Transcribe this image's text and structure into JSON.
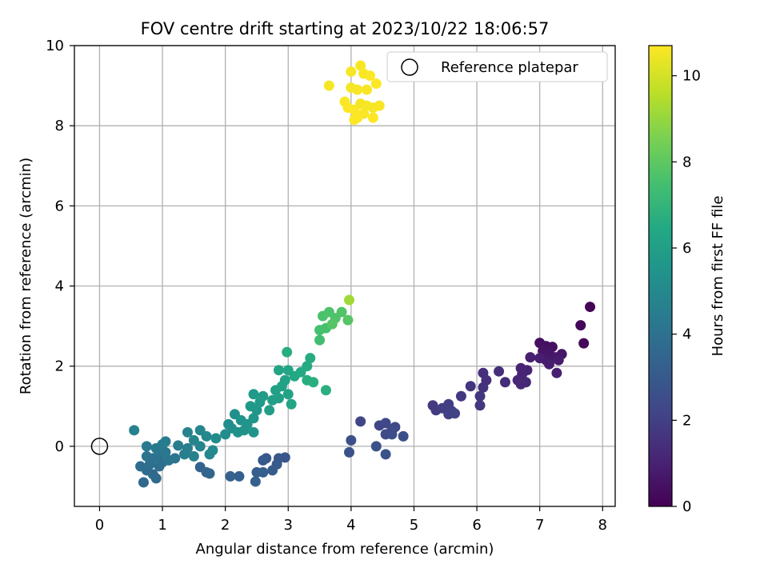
{
  "chart_data": {
    "type": "scatter",
    "title": "FOV centre drift starting at 2023/10/22 18:06:57",
    "xlabel": "Angular distance from reference (arcmin)",
    "ylabel": "Rotation from reference (arcmin)",
    "xlim": [
      -0.4,
      8.2
    ],
    "ylim": [
      -1.5,
      10.0
    ],
    "xticks": [
      0,
      1,
      2,
      3,
      4,
      5,
      6,
      7,
      8
    ],
    "yticks": [
      0,
      2,
      4,
      6,
      8,
      10
    ],
    "grid": true,
    "legend": {
      "position": "top-right",
      "entries": [
        "Reference platepar"
      ]
    },
    "reference_point": {
      "x": 0,
      "y": 0,
      "label": "Reference platepar"
    },
    "colorbar": {
      "label": "Hours from first FF file",
      "colormap": "viridis",
      "range": [
        0,
        10.7
      ],
      "ticks": [
        0,
        2,
        4,
        6,
        8,
        10
      ]
    },
    "points": [
      {
        "x": 7.8,
        "y": 3.48,
        "t": 0.1
      },
      {
        "x": 7.65,
        "y": 3.02,
        "t": 0.15
      },
      {
        "x": 7.7,
        "y": 2.57,
        "t": 0.2
      },
      {
        "x": 7.0,
        "y": 2.58,
        "t": 0.4
      },
      {
        "x": 7.1,
        "y": 2.5,
        "t": 0.45
      },
      {
        "x": 7.2,
        "y": 2.48,
        "t": 0.5
      },
      {
        "x": 7.05,
        "y": 2.38,
        "t": 0.55
      },
      {
        "x": 7.15,
        "y": 2.32,
        "t": 0.6
      },
      {
        "x": 7.35,
        "y": 2.3,
        "t": 0.65
      },
      {
        "x": 7.25,
        "y": 2.22,
        "t": 0.7
      },
      {
        "x": 7.1,
        "y": 2.15,
        "t": 0.75
      },
      {
        "x": 7.3,
        "y": 2.15,
        "t": 0.8
      },
      {
        "x": 7.15,
        "y": 2.05,
        "t": 0.85
      },
      {
        "x": 7.0,
        "y": 2.2,
        "t": 0.9
      },
      {
        "x": 6.85,
        "y": 2.22,
        "t": 0.95
      },
      {
        "x": 6.7,
        "y": 1.95,
        "t": 1.0
      },
      {
        "x": 6.8,
        "y": 1.9,
        "t": 1.05
      },
      {
        "x": 6.72,
        "y": 1.8,
        "t": 1.1
      },
      {
        "x": 6.65,
        "y": 1.65,
        "t": 1.15
      },
      {
        "x": 6.78,
        "y": 1.6,
        "t": 1.2
      },
      {
        "x": 6.7,
        "y": 1.55,
        "t": 1.25
      },
      {
        "x": 6.45,
        "y": 1.6,
        "t": 1.3
      },
      {
        "x": 7.27,
        "y": 1.83,
        "t": 0.95
      },
      {
        "x": 6.35,
        "y": 1.87,
        "t": 1.4
      },
      {
        "x": 6.1,
        "y": 1.83,
        "t": 1.45
      },
      {
        "x": 6.15,
        "y": 1.65,
        "t": 1.5
      },
      {
        "x": 6.1,
        "y": 1.47,
        "t": 1.55
      },
      {
        "x": 5.9,
        "y": 1.5,
        "t": 1.6
      },
      {
        "x": 6.05,
        "y": 1.25,
        "t": 1.65
      },
      {
        "x": 5.75,
        "y": 1.25,
        "t": 1.7
      },
      {
        "x": 6.05,
        "y": 1.02,
        "t": 1.75
      },
      {
        "x": 5.3,
        "y": 1.02,
        "t": 1.8
      },
      {
        "x": 5.35,
        "y": 0.9,
        "t": 1.85
      },
      {
        "x": 5.45,
        "y": 0.95,
        "t": 1.9
      },
      {
        "x": 5.55,
        "y": 1.05,
        "t": 1.95
      },
      {
        "x": 5.6,
        "y": 0.88,
        "t": 2.0
      },
      {
        "x": 5.55,
        "y": 0.8,
        "t": 2.05
      },
      {
        "x": 5.65,
        "y": 0.82,
        "t": 2.1
      },
      {
        "x": 4.15,
        "y": 0.62,
        "t": 2.2
      },
      {
        "x": 4.45,
        "y": 0.52,
        "t": 2.25
      },
      {
        "x": 4.55,
        "y": 0.58,
        "t": 2.3
      },
      {
        "x": 4.7,
        "y": 0.48,
        "t": 2.35
      },
      {
        "x": 4.65,
        "y": 0.42,
        "t": 2.4
      },
      {
        "x": 4.55,
        "y": 0.3,
        "t": 2.45
      },
      {
        "x": 4.65,
        "y": 0.3,
        "t": 2.5
      },
      {
        "x": 4.83,
        "y": 0.25,
        "t": 2.55
      },
      {
        "x": 4.0,
        "y": 0.15,
        "t": 2.6
      },
      {
        "x": 4.4,
        "y": 0.0,
        "t": 2.65
      },
      {
        "x": 3.97,
        "y": -0.15,
        "t": 2.7
      },
      {
        "x": 4.55,
        "y": -0.2,
        "t": 2.75
      },
      {
        "x": 2.95,
        "y": -0.28,
        "t": 2.85
      },
      {
        "x": 2.85,
        "y": -0.3,
        "t": 2.9
      },
      {
        "x": 2.65,
        "y": -0.3,
        "t": 2.95
      },
      {
        "x": 2.6,
        "y": -0.35,
        "t": 3.0
      },
      {
        "x": 2.82,
        "y": -0.45,
        "t": 3.05
      },
      {
        "x": 2.75,
        "y": -0.6,
        "t": 3.1
      },
      {
        "x": 2.5,
        "y": -0.65,
        "t": 3.15
      },
      {
        "x": 2.6,
        "y": -0.65,
        "t": 3.2
      },
      {
        "x": 2.22,
        "y": -0.75,
        "t": 3.25
      },
      {
        "x": 2.08,
        "y": -0.75,
        "t": 3.3
      },
      {
        "x": 2.48,
        "y": -0.88,
        "t": 3.35
      },
      {
        "x": 1.6,
        "y": -0.52,
        "t": 3.4
      },
      {
        "x": 1.7,
        "y": -0.65,
        "t": 3.45
      },
      {
        "x": 1.75,
        "y": -0.68,
        "t": 3.5
      },
      {
        "x": 0.7,
        "y": -0.9,
        "t": 3.6
      },
      {
        "x": 0.85,
        "y": -0.7,
        "t": 3.65
      },
      {
        "x": 0.9,
        "y": -0.8,
        "t": 3.7
      },
      {
        "x": 0.75,
        "y": -0.6,
        "t": 3.75
      },
      {
        "x": 0.65,
        "y": -0.5,
        "t": 3.8
      },
      {
        "x": 0.8,
        "y": -0.45,
        "t": 3.85
      },
      {
        "x": 0.95,
        "y": -0.5,
        "t": 3.9
      },
      {
        "x": 1.0,
        "y": -0.4,
        "t": 3.95
      },
      {
        "x": 0.85,
        "y": -0.3,
        "t": 4.0
      },
      {
        "x": 0.75,
        "y": -0.25,
        "t": 4.05
      },
      {
        "x": 0.95,
        "y": -0.2,
        "t": 4.1
      },
      {
        "x": 1.1,
        "y": -0.35,
        "t": 4.15
      },
      {
        "x": 1.2,
        "y": -0.3,
        "t": 4.2
      },
      {
        "x": 1.05,
        "y": -0.15,
        "t": 4.25
      },
      {
        "x": 0.9,
        "y": -0.05,
        "t": 4.3
      },
      {
        "x": 0.75,
        "y": 0.0,
        "t": 4.35
      },
      {
        "x": 1.0,
        "y": 0.05,
        "t": 4.4
      },
      {
        "x": 1.05,
        "y": 0.12,
        "t": 4.45
      },
      {
        "x": 1.25,
        "y": 0.02,
        "t": 4.5
      },
      {
        "x": 1.4,
        "y": -0.05,
        "t": 4.55
      },
      {
        "x": 1.35,
        "y": -0.2,
        "t": 4.6
      },
      {
        "x": 1.5,
        "y": -0.25,
        "t": 4.65
      },
      {
        "x": 0.55,
        "y": 0.4,
        "t": 4.7
      },
      {
        "x": 1.4,
        "y": 0.35,
        "t": 4.75
      },
      {
        "x": 1.5,
        "y": 0.15,
        "t": 4.8
      },
      {
        "x": 1.6,
        "y": 0.0,
        "t": 4.85
      },
      {
        "x": 1.6,
        "y": 0.4,
        "t": 4.9
      },
      {
        "x": 1.7,
        "y": 0.25,
        "t": 4.95
      },
      {
        "x": 1.75,
        "y": -0.2,
        "t": 5.0
      },
      {
        "x": 1.8,
        "y": -0.1,
        "t": 5.05
      },
      {
        "x": 1.85,
        "y": 0.2,
        "t": 5.1
      },
      {
        "x": 2.0,
        "y": 0.3,
        "t": 5.15
      },
      {
        "x": 2.05,
        "y": 0.55,
        "t": 5.2
      },
      {
        "x": 2.1,
        "y": 0.45,
        "t": 5.25
      },
      {
        "x": 2.15,
        "y": 0.8,
        "t": 5.3
      },
      {
        "x": 2.2,
        "y": 0.35,
        "t": 5.35
      },
      {
        "x": 2.25,
        "y": 0.65,
        "t": 5.4
      },
      {
        "x": 2.3,
        "y": 0.4,
        "t": 5.45
      },
      {
        "x": 2.35,
        "y": 0.55,
        "t": 5.5
      },
      {
        "x": 2.45,
        "y": 0.35,
        "t": 5.55
      },
      {
        "x": 2.45,
        "y": 0.7,
        "t": 5.6
      },
      {
        "x": 2.5,
        "y": 0.9,
        "t": 5.65
      },
      {
        "x": 2.4,
        "y": 1.0,
        "t": 5.7
      },
      {
        "x": 2.45,
        "y": 1.3,
        "t": 5.75
      },
      {
        "x": 2.55,
        "y": 1.1,
        "t": 5.8
      },
      {
        "x": 2.6,
        "y": 1.25,
        "t": 5.85
      },
      {
        "x": 2.7,
        "y": 0.9,
        "t": 5.9
      },
      {
        "x": 2.75,
        "y": 1.15,
        "t": 5.95
      },
      {
        "x": 2.8,
        "y": 1.4,
        "t": 6.0
      },
      {
        "x": 2.85,
        "y": 1.2,
        "t": 6.05
      },
      {
        "x": 2.9,
        "y": 1.5,
        "t": 6.1
      },
      {
        "x": 2.95,
        "y": 1.65,
        "t": 6.15
      },
      {
        "x": 3.0,
        "y": 1.3,
        "t": 6.2
      },
      {
        "x": 3.05,
        "y": 1.05,
        "t": 6.25
      },
      {
        "x": 2.85,
        "y": 1.9,
        "t": 6.3
      },
      {
        "x": 3.0,
        "y": 1.9,
        "t": 6.35
      },
      {
        "x": 3.1,
        "y": 1.75,
        "t": 6.4
      },
      {
        "x": 3.2,
        "y": 1.85,
        "t": 6.45
      },
      {
        "x": 3.3,
        "y": 2.0,
        "t": 6.5
      },
      {
        "x": 3.35,
        "y": 2.2,
        "t": 6.55
      },
      {
        "x": 2.98,
        "y": 2.35,
        "t": 6.6
      },
      {
        "x": 3.3,
        "y": 1.65,
        "t": 6.65
      },
      {
        "x": 3.4,
        "y": 1.6,
        "t": 6.7
      },
      {
        "x": 3.6,
        "y": 1.4,
        "t": 6.75
      },
      {
        "x": 3.5,
        "y": 2.65,
        "t": 7.4
      },
      {
        "x": 3.5,
        "y": 2.9,
        "t": 7.5
      },
      {
        "x": 3.6,
        "y": 2.95,
        "t": 7.55
      },
      {
        "x": 3.55,
        "y": 3.25,
        "t": 7.6
      },
      {
        "x": 3.65,
        "y": 3.35,
        "t": 7.65
      },
      {
        "x": 3.75,
        "y": 3.2,
        "t": 7.7
      },
      {
        "x": 3.85,
        "y": 3.35,
        "t": 7.75
      },
      {
        "x": 3.7,
        "y": 3.05,
        "t": 7.8
      },
      {
        "x": 3.95,
        "y": 3.15,
        "t": 7.85
      },
      {
        "x": 3.97,
        "y": 3.65,
        "t": 9.2
      },
      {
        "x": 3.65,
        "y": 9.0,
        "t": 10.55
      },
      {
        "x": 4.0,
        "y": 9.35,
        "t": 10.6
      },
      {
        "x": 4.15,
        "y": 9.5,
        "t": 10.62
      },
      {
        "x": 4.2,
        "y": 9.3,
        "t": 10.64
      },
      {
        "x": 4.3,
        "y": 9.25,
        "t": 10.66
      },
      {
        "x": 4.4,
        "y": 9.05,
        "t": 10.68
      },
      {
        "x": 4.0,
        "y": 8.95,
        "t": 10.58
      },
      {
        "x": 4.1,
        "y": 8.9,
        "t": 10.6
      },
      {
        "x": 4.25,
        "y": 8.9,
        "t": 10.62
      },
      {
        "x": 3.9,
        "y": 8.6,
        "t": 10.64
      },
      {
        "x": 3.95,
        "y": 8.45,
        "t": 10.66
      },
      {
        "x": 4.05,
        "y": 8.4,
        "t": 10.68
      },
      {
        "x": 4.15,
        "y": 8.55,
        "t": 10.55
      },
      {
        "x": 4.25,
        "y": 8.5,
        "t": 10.58
      },
      {
        "x": 4.35,
        "y": 8.45,
        "t": 10.6
      },
      {
        "x": 4.45,
        "y": 8.5,
        "t": 10.62
      },
      {
        "x": 4.2,
        "y": 8.3,
        "t": 10.64
      },
      {
        "x": 4.1,
        "y": 8.2,
        "t": 10.66
      },
      {
        "x": 4.05,
        "y": 8.15,
        "t": 10.68
      },
      {
        "x": 4.35,
        "y": 8.2,
        "t": 10.7
      }
    ]
  }
}
